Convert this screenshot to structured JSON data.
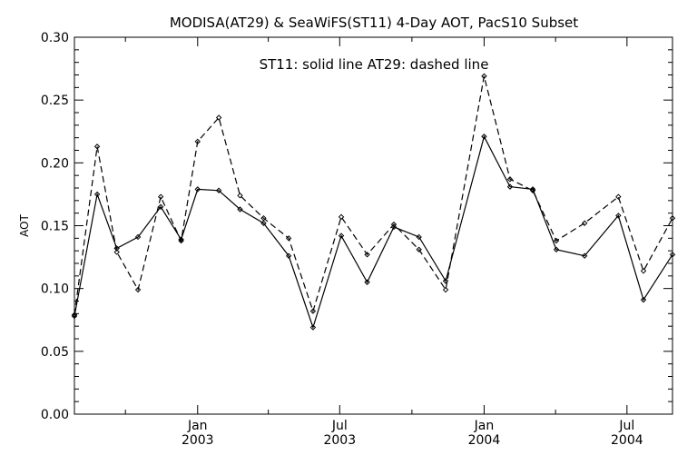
{
  "chart_data": {
    "type": "line",
    "title": "MODISA(AT29) & SeaWiFS(ST11) 4-Day AOT, PacS10 Subset",
    "annotation": "ST11: solid line   AT29: dashed line",
    "ylabel": "AOT",
    "xlabel": "",
    "ylim": [
      0.0,
      0.3
    ],
    "xlim": [
      "2002-07-28",
      "2004-08-28"
    ],
    "grid": false,
    "yticks": [
      "0.00",
      "0.05",
      "0.10",
      "0.15",
      "0.20",
      "0.25",
      "0.30"
    ],
    "xticks": [
      {
        "date": "2003-01-01",
        "label1": "Jan",
        "label2": "2003"
      },
      {
        "date": "2003-07-01",
        "label1": "Jul",
        "label2": "2003"
      },
      {
        "date": "2004-01-01",
        "label1": "Jan",
        "label2": "2004"
      },
      {
        "date": "2004-07-01",
        "label1": "Jul",
        "label2": "2004"
      }
    ],
    "minor_x_ticks": [
      "2002-10-01",
      "2003-04-01",
      "2003-10-01",
      "2004-04-01"
    ],
    "series": [
      {
        "name": "ST11",
        "style": "solid",
        "points": [
          [
            "2002-07-28",
            0.078
          ],
          [
            "2002-08-26",
            0.175
          ],
          [
            "2002-09-20",
            0.132
          ],
          [
            "2002-10-17",
            0.141
          ],
          [
            "2002-11-15",
            0.165
          ],
          [
            "2002-12-11",
            0.139
          ],
          [
            "2003-01-01",
            0.179
          ],
          [
            "2003-01-28",
            0.178
          ],
          [
            "2003-02-24",
            0.163
          ],
          [
            "2003-03-26",
            0.152
          ],
          [
            "2003-04-27",
            0.126
          ],
          [
            "2003-05-28",
            0.069
          ],
          [
            "2003-07-03",
            0.142
          ],
          [
            "2003-08-05",
            0.105
          ],
          [
            "2003-09-08",
            0.149
          ],
          [
            "2003-10-10",
            0.141
          ],
          [
            "2003-11-13",
            0.106
          ],
          [
            "2004-01-01",
            0.221
          ],
          [
            "2004-02-03",
            0.181
          ],
          [
            "2004-03-03",
            0.179
          ],
          [
            "2004-04-02",
            0.131
          ],
          [
            "2004-05-08",
            0.126
          ],
          [
            "2004-06-20",
            0.158
          ],
          [
            "2004-07-22",
            0.091
          ],
          [
            "2004-08-28",
            0.127
          ]
        ]
      },
      {
        "name": "AT29",
        "style": "dashed",
        "points": [
          [
            "2002-07-28",
            0.079
          ],
          [
            "2002-08-26",
            0.213
          ],
          [
            "2002-09-20",
            0.129
          ],
          [
            "2002-10-17",
            0.099
          ],
          [
            "2002-11-15",
            0.173
          ],
          [
            "2002-12-11",
            0.138
          ],
          [
            "2003-01-01",
            0.217
          ],
          [
            "2003-01-28",
            0.236
          ],
          [
            "2003-02-24",
            0.174
          ],
          [
            "2003-03-26",
            0.156
          ],
          [
            "2003-04-27",
            0.14
          ],
          [
            "2003-05-28",
            0.082
          ],
          [
            "2003-07-03",
            0.157
          ],
          [
            "2003-08-05",
            0.127
          ],
          [
            "2003-09-08",
            0.151
          ],
          [
            "2003-10-10",
            0.131
          ],
          [
            "2003-11-13",
            0.099
          ],
          [
            "2004-01-01",
            0.269
          ],
          [
            "2004-02-03",
            0.187
          ],
          [
            "2004-03-03",
            0.178
          ],
          [
            "2004-04-02",
            0.138
          ],
          [
            "2004-05-08",
            0.152
          ],
          [
            "2004-06-20",
            0.173
          ],
          [
            "2004-07-22",
            0.114
          ],
          [
            "2004-08-28",
            0.156
          ]
        ]
      }
    ]
  }
}
